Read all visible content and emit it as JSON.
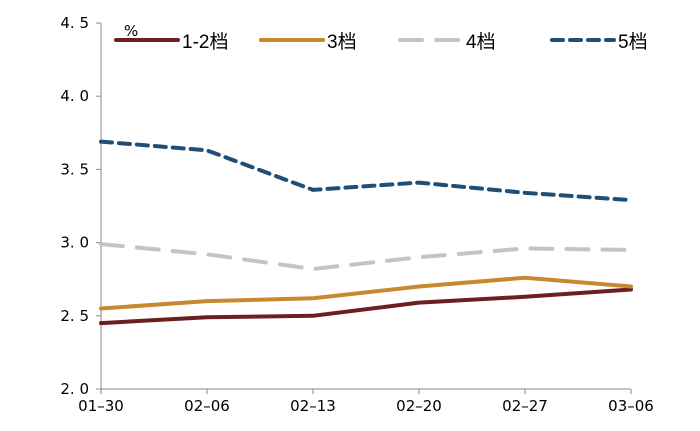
{
  "chart_data": {
    "type": "line",
    "title": "",
    "xlabel": "",
    "ylabel": "%",
    "ylim": [
      2.0,
      4.5
    ],
    "yticks": [
      "2.0",
      "2.5",
      "3.0",
      "3.5",
      "4.0",
      "4.5"
    ],
    "categories": [
      "01-30",
      "02-06",
      "02-13",
      "02-20",
      "02-27",
      "03-06"
    ],
    "legend_position": "top",
    "grid": false,
    "series": [
      {
        "name": "1-2档",
        "color": "#6b1f1f",
        "dash": "solid",
        "values": [
          2.45,
          2.49,
          2.5,
          2.59,
          2.63,
          2.68
        ]
      },
      {
        "name": "3档",
        "color": "#c8892e",
        "dash": "solid",
        "values": [
          2.55,
          2.6,
          2.62,
          2.7,
          2.76,
          2.7
        ]
      },
      {
        "name": "4档",
        "color": "#c4c4c4",
        "dash": "longdash",
        "values": [
          2.99,
          2.92,
          2.82,
          2.9,
          2.96,
          2.95
        ]
      },
      {
        "name": "5档",
        "color": "#1f4e79",
        "dash": "dash",
        "values": [
          3.69,
          3.63,
          3.36,
          3.41,
          3.34,
          3.29
        ]
      }
    ]
  }
}
